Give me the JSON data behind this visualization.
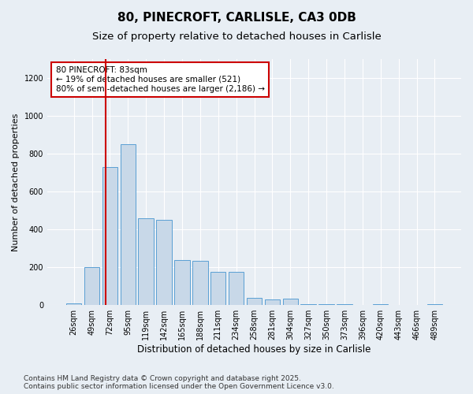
{
  "title_line1": "80, PINECROFT, CARLISLE, CA3 0DB",
  "title_line2": "Size of property relative to detached houses in Carlisle",
  "xlabel": "Distribution of detached houses by size in Carlisle",
  "ylabel": "Number of detached properties",
  "categories": [
    "26sqm",
    "49sqm",
    "72sqm",
    "95sqm",
    "119sqm",
    "142sqm",
    "165sqm",
    "188sqm",
    "211sqm",
    "234sqm",
    "258sqm",
    "281sqm",
    "304sqm",
    "327sqm",
    "350sqm",
    "373sqm",
    "396sqm",
    "420sqm",
    "443sqm",
    "466sqm",
    "489sqm"
  ],
  "values": [
    10,
    200,
    730,
    850,
    460,
    450,
    240,
    235,
    175,
    175,
    40,
    30,
    35,
    5,
    5,
    5,
    0,
    5,
    0,
    0,
    5
  ],
  "bar_color": "#c8d8e8",
  "bar_edge_color": "#5a9fd4",
  "vline_color": "#cc0000",
  "annotation_text": "80 PINECROFT: 83sqm\n← 19% of detached houses are smaller (521)\n80% of semi-detached houses are larger (2,186) →",
  "annotation_box_color": "#ffffff",
  "annotation_box_edge_color": "#cc0000",
  "ylim": [
    0,
    1300
  ],
  "yticks": [
    0,
    200,
    400,
    600,
    800,
    1000,
    1200
  ],
  "bg_color": "#e8eef4",
  "plot_bg_color": "#e8eef4",
  "footnote": "Contains HM Land Registry data © Crown copyright and database right 2025.\nContains public sector information licensed under the Open Government Licence v3.0.",
  "title_fontsize": 11,
  "subtitle_fontsize": 9.5,
  "xlabel_fontsize": 8.5,
  "ylabel_fontsize": 8,
  "tick_fontsize": 7,
  "annotation_fontsize": 7.5,
  "footnote_fontsize": 6.5
}
